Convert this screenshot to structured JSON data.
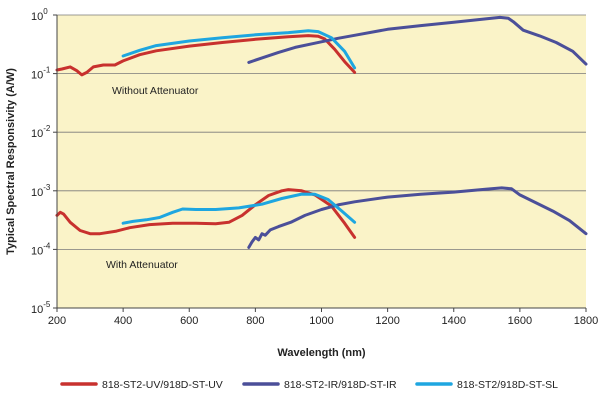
{
  "chart_data": {
    "type": "line",
    "title": "",
    "xlabel": "Wavelength (nm)",
    "ylabel": "Typical Spectral Responsivity (A/W)",
    "xlim": [
      200,
      1800
    ],
    "ylim_log10": [
      -5,
      0
    ],
    "x_ticks": [
      "200",
      "400",
      "600",
      "800",
      "1000",
      "1200",
      "1400",
      "1600",
      "1800"
    ],
    "y_ticks": [
      {
        "base": "10",
        "exp": "0"
      },
      {
        "base": "10",
        "exp": "-1"
      },
      {
        "base": "10",
        "exp": "-2"
      },
      {
        "base": "10",
        "exp": "-3"
      },
      {
        "base": "10",
        "exp": "-4"
      },
      {
        "base": "10",
        "exp": "-5"
      }
    ],
    "background_color": "#faf3c8",
    "grid": true,
    "annotations": [
      "Without Attenuator",
      "With Attenuator"
    ],
    "series": [
      {
        "name": "818-ST2-UV/918D-ST-UV",
        "color": "#c8312e",
        "segments": [
          {
            "label": "Without Attenuator",
            "points": [
              [
                200,
                0.115
              ],
              [
                215,
                0.12
              ],
              [
                240,
                0.13
              ],
              [
                260,
                0.112
              ],
              [
                275,
                0.095
              ],
              [
                290,
                0.105
              ],
              [
                310,
                0.13
              ],
              [
                340,
                0.14
              ],
              [
                375,
                0.14
              ],
              [
                400,
                0.165
              ],
              [
                450,
                0.21
              ],
              [
                500,
                0.245
              ],
              [
                600,
                0.295
              ],
              [
                700,
                0.34
              ],
              [
                800,
                0.385
              ],
              [
                900,
                0.425
              ],
              [
                960,
                0.445
              ],
              [
                990,
                0.435
              ],
              [
                1010,
                0.39
              ],
              [
                1040,
                0.26
              ],
              [
                1070,
                0.16
              ],
              [
                1100,
                0.105
              ]
            ]
          },
          {
            "label": "With Attenuator",
            "points": [
              [
                200,
                0.00038
              ],
              [
                210,
                0.00043
              ],
              [
                220,
                0.0004
              ],
              [
                240,
                0.00029
              ],
              [
                270,
                0.00021
              ],
              [
                300,
                0.000185
              ],
              [
                330,
                0.000185
              ],
              [
                380,
                0.000205
              ],
              [
                420,
                0.000235
              ],
              [
                480,
                0.000265
              ],
              [
                550,
                0.00028
              ],
              [
                620,
                0.00028
              ],
              [
                680,
                0.000275
              ],
              [
                720,
                0.00029
              ],
              [
                760,
                0.00038
              ],
              [
                800,
                0.00058
              ],
              [
                840,
                0.00083
              ],
              [
                880,
                0.001
              ],
              [
                900,
                0.00105
              ],
              [
                940,
                0.001
              ],
              [
                980,
                0.00085
              ],
              [
                1030,
                0.00055
              ],
              [
                1070,
                0.00028
              ],
              [
                1100,
                0.00016
              ]
            ]
          }
        ]
      },
      {
        "name": "818-ST2-IR/918D-ST-IR",
        "color": "#4b4f99",
        "segments": [
          {
            "label": "Without Attenuator",
            "points": [
              [
                780,
                0.155
              ],
              [
                820,
                0.185
              ],
              [
                870,
                0.23
              ],
              [
                920,
                0.28
              ],
              [
                980,
                0.33
              ],
              [
                1050,
                0.4
              ],
              [
                1100,
                0.45
              ],
              [
                1200,
                0.57
              ],
              [
                1300,
                0.66
              ],
              [
                1400,
                0.75
              ],
              [
                1500,
                0.86
              ],
              [
                1540,
                0.91
              ],
              [
                1565,
                0.88
              ],
              [
                1580,
                0.77
              ],
              [
                1610,
                0.55
              ],
              [
                1660,
                0.44
              ],
              [
                1710,
                0.34
              ],
              [
                1760,
                0.24
              ],
              [
                1800,
                0.145
              ]
            ]
          },
          {
            "label": "With Attenuator",
            "points": [
              [
                780,
                0.000108
              ],
              [
                790,
                0.000135
              ],
              [
                800,
                0.00016
              ],
              [
                810,
                0.000145
              ],
              [
                820,
                0.000185
              ],
              [
                830,
                0.000175
              ],
              [
                845,
                0.000215
              ],
              [
                870,
                0.000245
              ],
              [
                910,
                0.000295
              ],
              [
                950,
                0.00038
              ],
              [
                1000,
                0.00048
              ],
              [
                1050,
                0.000575
              ],
              [
                1100,
                0.00065
              ],
              [
                1200,
                0.00078
              ],
              [
                1300,
                0.00087
              ],
              [
                1400,
                0.00095
              ],
              [
                1500,
                0.00107
              ],
              [
                1545,
                0.00112
              ],
              [
                1575,
                0.00108
              ],
              [
                1600,
                0.00085
              ],
              [
                1650,
                0.00062
              ],
              [
                1700,
                0.00045
              ],
              [
                1750,
                0.00031
              ],
              [
                1800,
                0.000185
              ]
            ]
          }
        ]
      },
      {
        "name": "818-ST2/918D-ST-SL",
        "color": "#1ea6e0",
        "segments": [
          {
            "label": "Without Attenuator",
            "points": [
              [
                400,
                0.2
              ],
              [
                450,
                0.25
              ],
              [
                500,
                0.3
              ],
              [
                600,
                0.36
              ],
              [
                700,
                0.41
              ],
              [
                800,
                0.46
              ],
              [
                900,
                0.5
              ],
              [
                960,
                0.54
              ],
              [
                990,
                0.52
              ],
              [
                1030,
                0.41
              ],
              [
                1070,
                0.24
              ],
              [
                1100,
                0.125
              ]
            ]
          },
          {
            "label": "With Attenuator",
            "points": [
              [
                400,
                0.00028
              ],
              [
                430,
                0.0003
              ],
              [
                470,
                0.00032
              ],
              [
                510,
                0.00035
              ],
              [
                550,
                0.00043
              ],
              [
                580,
                0.00049
              ],
              [
                620,
                0.00048
              ],
              [
                680,
                0.00048
              ],
              [
                750,
                0.00051
              ],
              [
                820,
                0.00059
              ],
              [
                880,
                0.00074
              ],
              [
                940,
                0.00088
              ],
              [
                980,
                0.00087
              ],
              [
                1020,
                0.00071
              ],
              [
                1060,
                0.00046
              ],
              [
                1100,
                0.00029
              ]
            ]
          }
        ]
      }
    ]
  }
}
